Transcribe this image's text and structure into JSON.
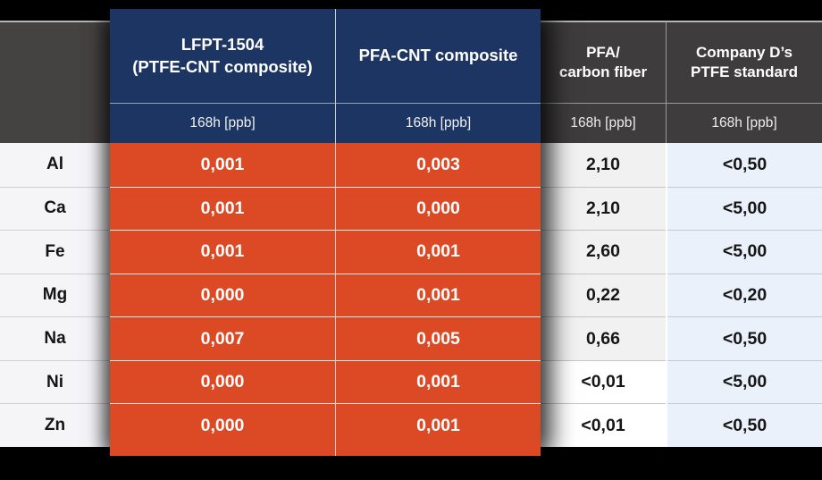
{
  "table": {
    "corner_label": "",
    "columns": [
      {
        "line1": "LFPT-1504",
        "line2": "(PTFE-CNT composite)",
        "subtitle": "168h [ppb]",
        "highlighted": true
      },
      {
        "line1": "PFA-CNT composite",
        "line2": "",
        "subtitle": "168h [ppb]",
        "highlighted": true
      },
      {
        "line1": "PFA/",
        "line2": "carbon fiber",
        "subtitle": "168h [ppb]",
        "highlighted": false
      },
      {
        "line1": "Company D’s",
        "line2": "PTFE standard",
        "subtitle": "168h [ppb]",
        "highlighted": false
      }
    ],
    "rows": [
      {
        "element": "Al",
        "lfpt": "0,001",
        "pfa_cnt": "0,003",
        "pfa_cf": "2,10",
        "company_d": "<0,50"
      },
      {
        "element": "Ca",
        "lfpt": "0,001",
        "pfa_cnt": "0,000",
        "pfa_cf": "2,10",
        "company_d": "<5,00"
      },
      {
        "element": "Fe",
        "lfpt": "0,001",
        "pfa_cnt": "0,001",
        "pfa_cf": "2,60",
        "company_d": "<5,00"
      },
      {
        "element": "Mg",
        "lfpt": "0,000",
        "pfa_cnt": "0,001",
        "pfa_cf": "0,22",
        "company_d": "<0,20"
      },
      {
        "element": "Na",
        "lfpt": "0,007",
        "pfa_cnt": "0,005",
        "pfa_cf": "0,66",
        "company_d": "<0,50"
      },
      {
        "element": "Ni",
        "lfpt": "0,000",
        "pfa_cnt": "0,001",
        "pfa_cf": "<0,01",
        "company_d": "<5,00"
      },
      {
        "element": "Zn",
        "lfpt": "0,000",
        "pfa_cnt": "0,001",
        "pfa_cf": "<0,01",
        "company_d": "<0,50"
      }
    ]
  },
  "colors": {
    "background": "#000000",
    "header_navy": "#1d3563",
    "highlight_orange": "#dc4a25",
    "header_gray": "#3e3c3c",
    "label_cell_bg": "#f5f5f8",
    "pfa_cf_cell_bg": "#f1f1f1",
    "pfa_cf_cell_bg_alt": "#ffffff",
    "company_d_cell_bg": "#ebf1fa"
  },
  "chart_data": {
    "type": "table",
    "columns": [
      "",
      "LFPT-1504 (PTFE-CNT composite)",
      "PFA-CNT composite",
      "PFA/carbon fiber",
      "Company D’s PTFE standard"
    ],
    "unit_row": [
      "",
      "168h [ppb]",
      "168h [ppb]",
      "168h [ppb]",
      "168h [ppb]"
    ],
    "rows": [
      [
        "Al",
        "0,001",
        "0,003",
        "2,10",
        "<0,50"
      ],
      [
        "Ca",
        "0,001",
        "0,000",
        "2,10",
        "<5,00"
      ],
      [
        "Fe",
        "0,001",
        "0,001",
        "2,60",
        "<5,00"
      ],
      [
        "Mg",
        "0,000",
        "0,001",
        "0,22",
        "<0,20"
      ],
      [
        "Na",
        "0,007",
        "0,005",
        "0,66",
        "<0,50"
      ],
      [
        "Ni",
        "0,000",
        "0,001",
        "<0,01",
        "<5,00"
      ],
      [
        "Zn",
        "0,000",
        "0,001",
        "<0,01",
        "<0,50"
      ]
    ],
    "highlighted_columns": [
      1,
      2
    ],
    "layout_hints": "columns 1-2 elevated cards: navy header, orange value cells, white text; black page background"
  }
}
